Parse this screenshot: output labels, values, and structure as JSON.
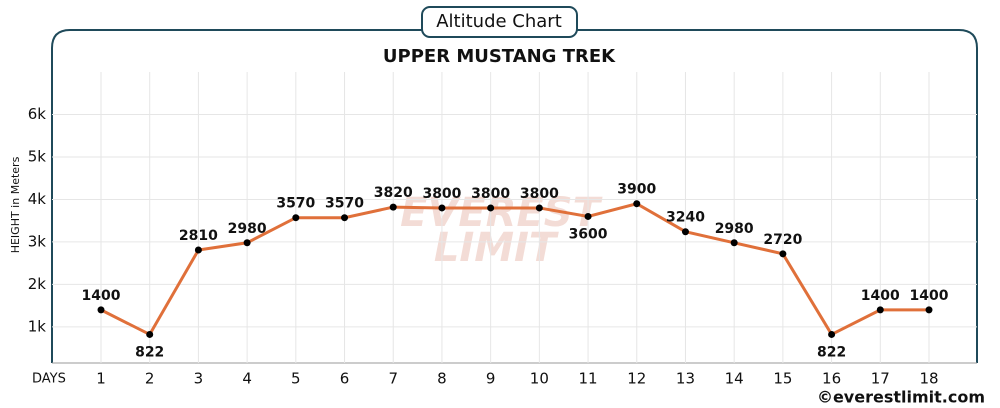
{
  "header": "Altitude Chart",
  "footer": "©everestlimit.com",
  "watermark": [
    "EVEREST",
    "LIMIT"
  ],
  "chart_data": {
    "type": "line",
    "title": "UPPER MUSTANG TREK",
    "y_label": "HEIGHT in Meters",
    "x_label": "DAYS",
    "categories": [
      "1",
      "2",
      "3",
      "4",
      "5",
      "6",
      "7",
      "8",
      "9",
      "10",
      "11",
      "12",
      "13",
      "14",
      "15",
      "16",
      "17",
      "18"
    ],
    "values": [
      1400,
      822,
      2810,
      2980,
      3570,
      3570,
      3820,
      3800,
      3800,
      3800,
      3600,
      3900,
      3240,
      2980,
      2720,
      822,
      1400,
      1400
    ],
    "color": "#e0703a",
    "marker_color": "#000000",
    "ylim": [
      150,
      7000
    ],
    "yticks": [
      {
        "value": 1000,
        "label": "1k"
      },
      {
        "value": 2000,
        "label": "2k"
      },
      {
        "value": 3000,
        "label": "3k"
      },
      {
        "value": 4000,
        "label": "4k"
      },
      {
        "value": 5000,
        "label": "5k"
      },
      {
        "value": 6000,
        "label": "6k"
      }
    ],
    "grid": true
  }
}
